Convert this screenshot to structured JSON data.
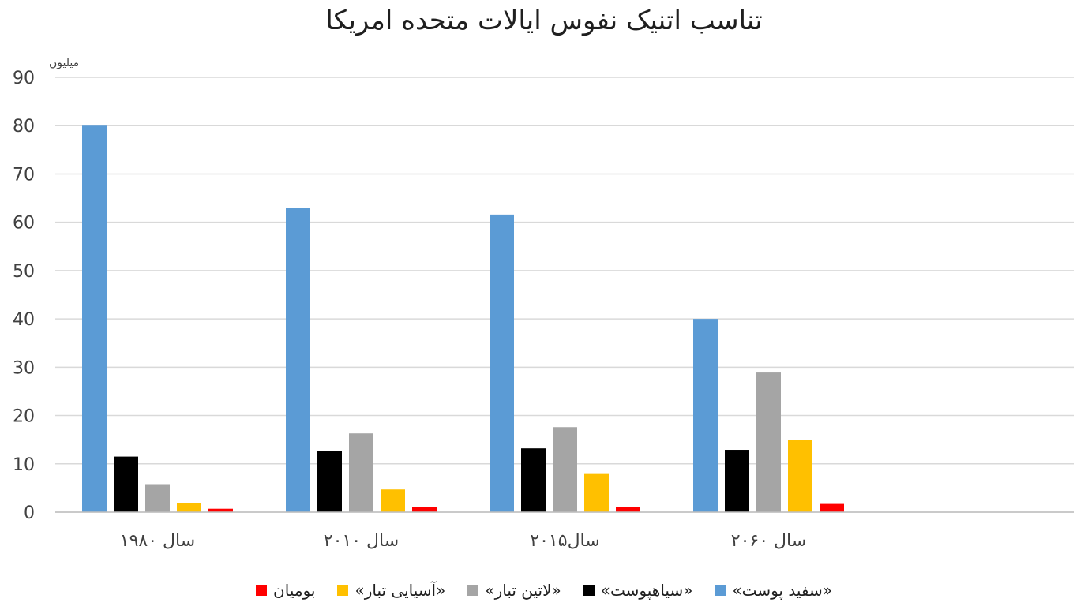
{
  "chart_data": {
    "type": "bar",
    "title": "تناسب اتنیک نفوس ایالات متحده امریکا",
    "unit_label": "میلیون",
    "categories": [
      "سال ۱۹۸۰",
      "سال ۲۰۱۰",
      "سال۲۰۱۵",
      "سال ۲۰۶۰"
    ],
    "ylim": [
      0,
      90
    ],
    "yticks": [
      0,
      10,
      20,
      30,
      40,
      50,
      60,
      70,
      80,
      90
    ],
    "grid": true,
    "legend_position": "bottom",
    "series": [
      {
        "name": "«سفید پوست»",
        "color": "#5b9bd5",
        "values": [
          80,
          63,
          61.6,
          40
        ]
      },
      {
        "name": "«سیاهپوست»",
        "color": "#000000",
        "values": [
          11.5,
          12.6,
          13.2,
          12.9
        ]
      },
      {
        "name": "«لاتین تبار»",
        "color": "#a5a5a5",
        "values": [
          5.8,
          16.3,
          17.6,
          28.9
        ]
      },
      {
        "name": "«آسیایی تبار»",
        "color": "#ffc000",
        "values": [
          1.9,
          4.7,
          7.9,
          15
        ]
      },
      {
        "name": "بومیان",
        "color": "#ff0000",
        "values": [
          0.7,
          1.1,
          1.1,
          1.7
        ]
      }
    ]
  }
}
